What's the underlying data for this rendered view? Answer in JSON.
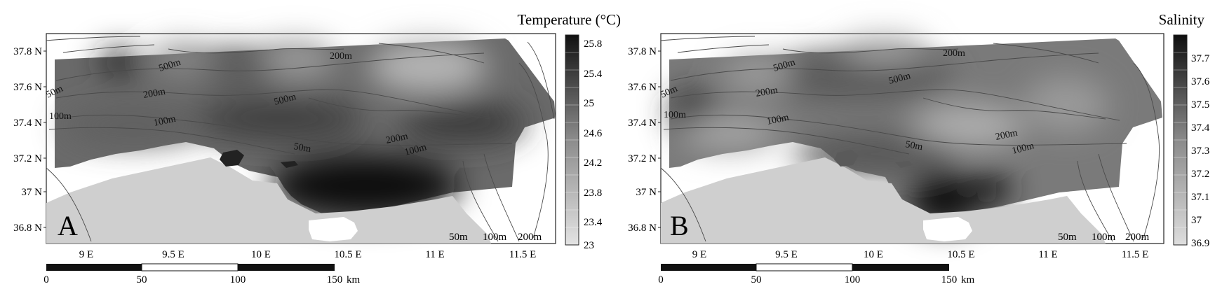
{
  "panels": [
    {
      "id": "A",
      "panel_letter": "A",
      "title": "Temperature (°C)",
      "colorbar_ticks": [
        "25.8",
        "25.4",
        "25",
        "24.6",
        "24.2",
        "23.8",
        "23.4",
        "23"
      ],
      "lat_ticks": [
        "37.8 N",
        "37.6 N",
        "37.4 N",
        "37.2 N",
        "37 N",
        "36.8 N"
      ],
      "lon_ticks": [
        "9 E",
        "9.5 E",
        "10 E",
        "10.5 E",
        "11 E",
        "11.5 E"
      ],
      "contour_labels": [
        "500m",
        "200m",
        "500m",
        "200m",
        "50m",
        "100m",
        "100m",
        "50m",
        "200m",
        "100m"
      ],
      "scale_ticks": [
        "0",
        "50",
        "100",
        "150"
      ],
      "scale_unit": "km",
      "depth_legend": [
        "50m",
        "100m",
        "200m"
      ]
    },
    {
      "id": "B",
      "panel_letter": "B",
      "title": "Salinity",
      "colorbar_ticks": [
        "37.7",
        "37.6",
        "37.5",
        "37.4",
        "37.3",
        "37.2",
        "37.1",
        "37",
        "36.9"
      ],
      "lat_ticks": [
        "37.8 N",
        "37.6 N",
        "37.4 N",
        "37.2 N",
        "37 N",
        "36.8 N"
      ],
      "lon_ticks": [
        "9 E",
        "9.5 E",
        "10 E",
        "10.5 E",
        "11 E",
        "11.5 E"
      ],
      "contour_labels": [
        "200m",
        "500m",
        "500m",
        "200m",
        "50m",
        "100m",
        "100m",
        "50m",
        "200m",
        "100m"
      ],
      "scale_ticks": [
        "0",
        "50",
        "100",
        "150"
      ],
      "scale_unit": "km",
      "depth_legend": [
        "50m",
        "100m",
        "200m"
      ]
    }
  ],
  "colors": {
    "land": "#cfcfcf",
    "sea": "#ffffff",
    "frame": "#222222",
    "contour": "#555555"
  }
}
